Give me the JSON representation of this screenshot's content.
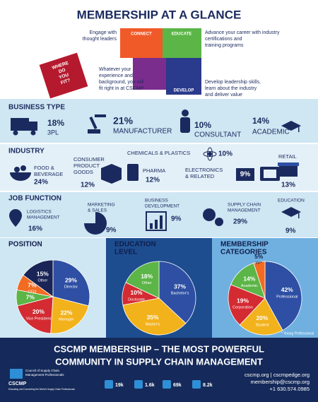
{
  "header": {
    "title": "MEMBERSHIP AT A GLANCE"
  },
  "puzzle": {
    "pieces": [
      "CONNECT",
      "EDUCATE",
      "DEVELOP"
    ],
    "fit": [
      "WHERE",
      "DO",
      "YOU",
      "FIT?"
    ],
    "notes": [
      [
        "Engage with",
        "thought leaders"
      ],
      [
        "Advance your career with industry",
        "certifications and",
        "training programs"
      ],
      [
        "Whatever your",
        "experience and",
        "background, you will",
        "fit right in at CSCMP"
      ],
      [
        "Develop leadership skills,",
        "learn about the industry",
        "and deliver value"
      ]
    ]
  },
  "business_type": {
    "title": "BUSINESS TYPE",
    "items": [
      {
        "value": "18%",
        "label": "3PL"
      },
      {
        "value": "21%",
        "label": "MANUFACTURER"
      },
      {
        "value": "10%",
        "label": "CONSULTANT"
      },
      {
        "value": "14%",
        "label": "ACADEMIC"
      }
    ]
  },
  "industry": {
    "title": "INDUSTRY",
    "items": [
      {
        "label": [
          "FOOD &",
          "BEVERAGE"
        ],
        "value": "24%"
      },
      {
        "label": [
          "CONSUMER",
          "PRODUCT",
          "GOODS"
        ],
        "value": "12%"
      },
      {
        "label": [
          "PHARMA"
        ],
        "value": "12%"
      },
      {
        "label": [
          "CHEMICALS & PLASTICS"
        ],
        "value": "10%"
      },
      {
        "label": [
          "ELECTRONICS",
          "& RELATED"
        ],
        "value": "9%"
      },
      {
        "label": [
          "RETAIL"
        ],
        "value": "13%"
      }
    ]
  },
  "job_function": {
    "title": "JOB FUNCTION",
    "items": [
      {
        "label": [
          "LOGISTICS",
          "MANAGEMENT"
        ],
        "value": "16%"
      },
      {
        "label": [
          "MARKETING",
          "& SALES"
        ],
        "value": "9%"
      },
      {
        "label": [
          "BUSINESS",
          "DEVELOPMENT"
        ],
        "value": "9%"
      },
      {
        "label": [
          "SUPPLY CHAIN",
          "MANAGEMENT"
        ],
        "value": "29%"
      },
      {
        "label": [
          "EDUCATION"
        ],
        "value": "9%"
      }
    ]
  },
  "pies": [
    {
      "title": [
        "POSITION"
      ],
      "labels": [
        "Director",
        "Manager",
        "Vice President",
        null,
        "CEO",
        "Other"
      ],
      "values": [
        29,
        22,
        20,
        7,
        7,
        15
      ],
      "value_labels": [
        "29%",
        "22%",
        "20%",
        "7%",
        "7%",
        "15%"
      ],
      "colors": [
        "#2e4fa3",
        "#f2b21b",
        "#d42b32",
        "#5bb547",
        "#f26b22",
        "#1a2456"
      ]
    },
    {
      "title": [
        "EDUCATION",
        "LEVEL"
      ],
      "labels": [
        "Bachelor's",
        "Master's",
        "Doctorate",
        "Other"
      ],
      "values": [
        37,
        35,
        10,
        18
      ],
      "value_labels": [
        "37%",
        "35%",
        "10%",
        "18%"
      ],
      "colors": [
        "#2e4fa3",
        "#f2b21b",
        "#d42b32",
        "#5bb547"
      ]
    },
    {
      "title": [
        "MEMBERSHIP",
        "CATEGORIES"
      ],
      "labels": [
        "Professional",
        "Student",
        "Corporation",
        "Academic",
        "YP*"
      ],
      "values": [
        42,
        20,
        19,
        14,
        5
      ],
      "value_labels": [
        "42%",
        "20%",
        "19%",
        "14%",
        "5%"
      ],
      "colors": [
        "#2e4fa3",
        "#f2b21b",
        "#d42b32",
        "#5bb547",
        "#f26b22"
      ]
    }
  ],
  "footnote": "* Young Professional",
  "footer": {
    "headline": [
      "CSCMP MEMBERSHIP – THE MOST POWERFUL",
      "COMMUNITY IN SUPPLY CHAIN MANAGEMENT"
    ],
    "logo": "CSCMP",
    "org": [
      "Council of Supply Chain",
      "Management Professionals"
    ],
    "tagline": "Educating and Connecting the World's Supply Chain Professionals",
    "social": [
      "19k",
      "1.6k",
      "69k",
      "8.2k"
    ],
    "contact": [
      "cscmp.org | cscmpedge.org",
      "membership@cscmp.org",
      "+1 630.574.0985"
    ]
  }
}
